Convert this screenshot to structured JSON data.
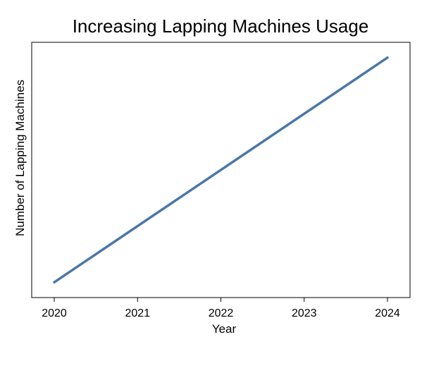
{
  "chart_data": {
    "type": "line",
    "title": "Increasing Lapping Machines Usage",
    "xlabel": "Year",
    "ylabel": "Number of Lapping Machines",
    "x": [
      2020,
      2024
    ],
    "x_ticks": [
      "2020",
      "2021",
      "2022",
      "2023",
      "2024"
    ],
    "y_ticks": [],
    "series": [
      {
        "values": [
          0.06,
          0.94
        ]
      }
    ],
    "ylim": [
      0,
      1
    ],
    "line_color": "#4a77a8",
    "grid": false,
    "legend": "none"
  }
}
